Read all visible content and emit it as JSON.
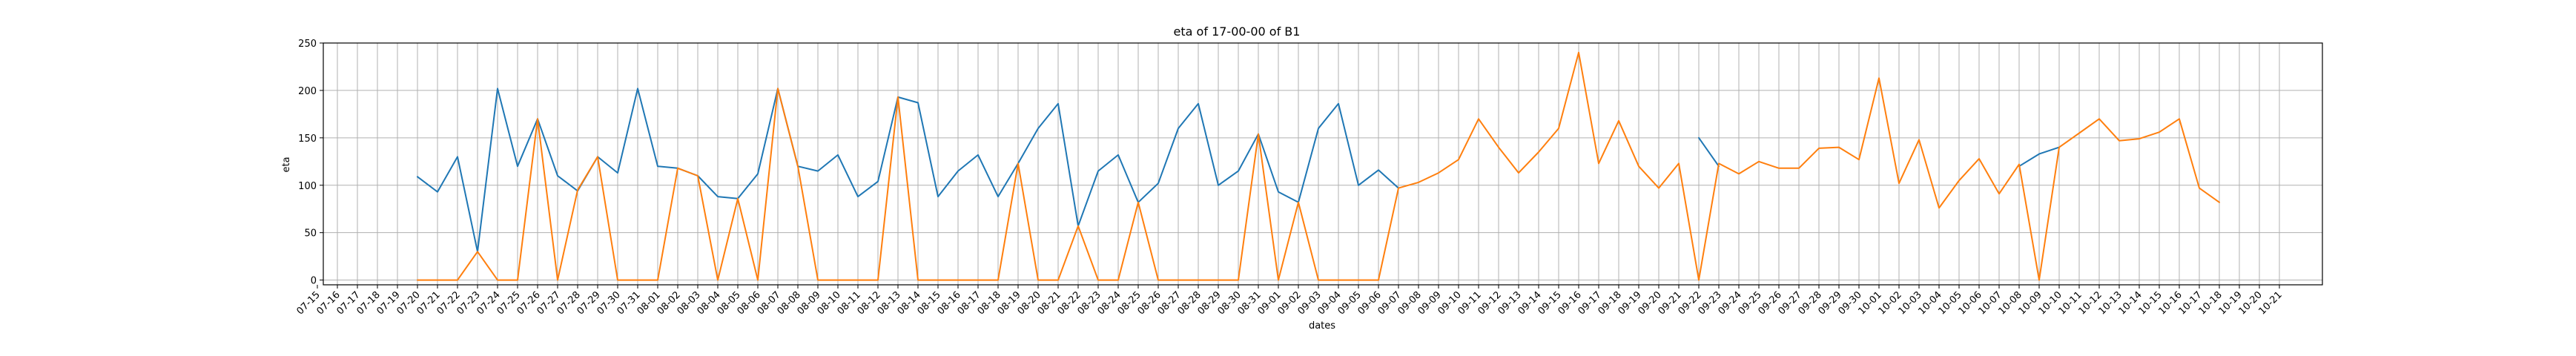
{
  "chart_data": {
    "type": "line",
    "title": "eta of 17-00-00 of B1",
    "xlabel": "dates",
    "ylabel": "eta",
    "ylim": [
      -5,
      250
    ],
    "yticks": [
      0,
      50,
      100,
      150,
      200,
      250
    ],
    "grid": true,
    "x": [
      "07-15",
      "07-16",
      "07-17",
      "07-18",
      "07-19",
      "07-20",
      "07-21",
      "07-22",
      "07-23",
      "07-24",
      "07-25",
      "07-26",
      "07-27",
      "07-28",
      "07-29",
      "07-30",
      "07-31",
      "08-01",
      "08-02",
      "08-03",
      "08-04",
      "08-05",
      "08-06",
      "08-07",
      "08-08",
      "08-09",
      "08-10",
      "08-11",
      "08-12",
      "08-13",
      "08-14",
      "08-15",
      "08-16",
      "08-17",
      "08-18",
      "08-19",
      "08-20",
      "08-21",
      "08-22",
      "08-23",
      "08-24",
      "08-25",
      "08-26",
      "08-27",
      "08-28",
      "08-29",
      "08-30",
      "08-31",
      "09-01",
      "09-02",
      "09-03",
      "09-04",
      "09-05",
      "09-06",
      "09-07",
      "09-08",
      "09-09",
      "09-10",
      "09-11",
      "09-12",
      "09-13",
      "09-14",
      "09-15",
      "09-16",
      "09-17",
      "09-18",
      "09-19",
      "09-20",
      "09-21",
      "09-22",
      "09-23",
      "09-24",
      "09-25",
      "09-26",
      "09-27",
      "09-28",
      "09-29",
      "09-30",
      "10-01",
      "10-02",
      "10-03",
      "10-04",
      "10-05",
      "10-06",
      "10-07",
      "10-08",
      "10-09",
      "10-10",
      "10-11",
      "10-12",
      "10-13",
      "10-14",
      "10-15",
      "10-16",
      "10-17",
      "10-18",
      "10-19",
      "10-20",
      "10-21"
    ],
    "series": [
      {
        "color": "#1f77b4",
        "values": [
          null,
          null,
          null,
          null,
          null,
          109,
          93,
          130,
          30,
          202,
          120,
          170,
          110,
          94,
          130,
          113,
          202,
          120,
          118,
          110,
          88,
          86,
          112,
          202,
          120,
          115,
          132,
          88,
          104,
          193,
          187,
          88,
          115,
          132,
          88,
          123,
          160,
          186,
          57,
          115,
          132,
          82,
          102,
          160,
          186,
          100,
          115,
          154,
          93,
          82,
          160,
          186,
          100,
          116,
          97,
          null,
          null,
          null,
          null,
          null,
          null,
          null,
          null,
          null,
          null,
          null,
          null,
          null,
          null,
          150,
          120,
          null,
          null,
          null,
          null,
          null,
          null,
          null,
          null,
          null,
          null,
          null,
          null,
          null,
          null,
          120,
          133,
          140,
          null,
          null,
          null,
          null,
          null,
          null,
          null,
          null,
          null,
          null,
          null
        ]
      },
      {
        "color": "#ff7f0e",
        "values": [
          null,
          null,
          null,
          null,
          null,
          0,
          0,
          0,
          30,
          0,
          0,
          170,
          0,
          95,
          130,
          0,
          0,
          0,
          118,
          110,
          0,
          86,
          0,
          202,
          120,
          0,
          0,
          0,
          0,
          193,
          0,
          0,
          0,
          0,
          0,
          123,
          0,
          0,
          57,
          0,
          0,
          82,
          0,
          0,
          0,
          0,
          0,
          154,
          0,
          82,
          0,
          0,
          0,
          0,
          97,
          103,
          113,
          127,
          170,
          140,
          113,
          135,
          160,
          240,
          123,
          168,
          120,
          97,
          123,
          0,
          123,
          112,
          125,
          118,
          118,
          139,
          140,
          127,
          213,
          102,
          148,
          76,
          105,
          128,
          91,
          122,
          0,
          140,
          155,
          170,
          147,
          149,
          156,
          170,
          97,
          82,
          null,
          null,
          null
        ]
      }
    ]
  }
}
